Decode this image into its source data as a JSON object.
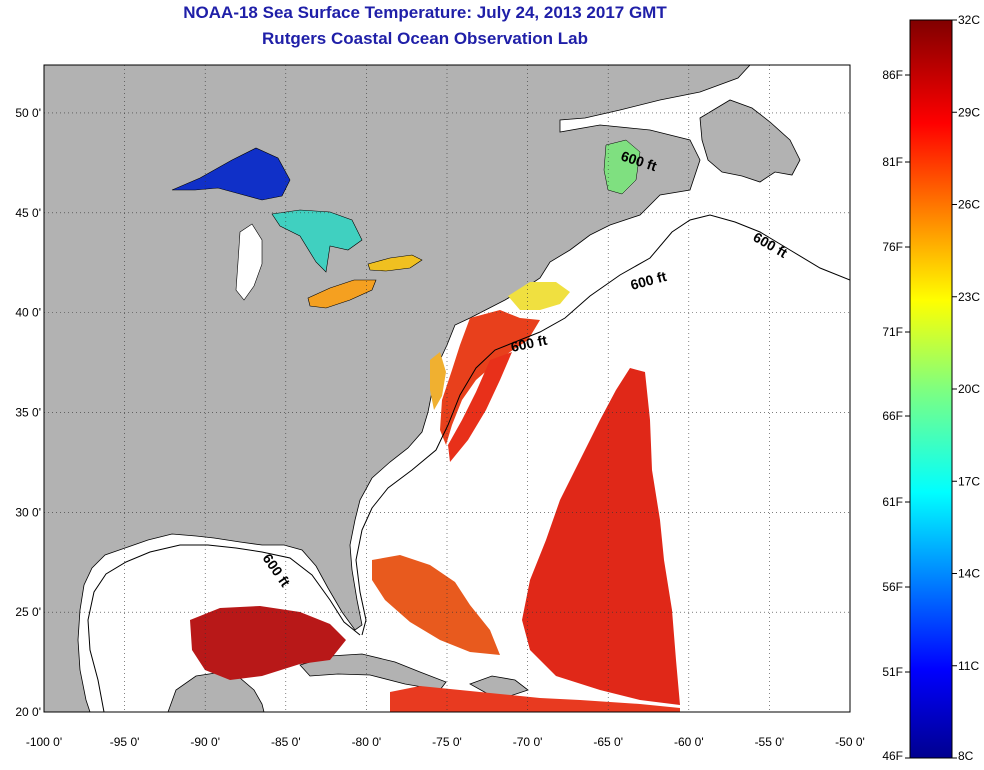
{
  "title": {
    "line1": "NOAA-18 Sea Surface Temperature:  July 24, 2013 2017 GMT",
    "line2": "Rutgers Coastal Ocean Observation Lab"
  },
  "map": {
    "lat_labels": [
      "50 0'",
      "45 0'",
      "40 0'",
      "35 0'",
      "30 0'",
      "25 0'",
      "20 0'"
    ],
    "lat_values": [
      50,
      45,
      40,
      35,
      30,
      25,
      20
    ],
    "lon_labels": [
      "-100 0'",
      "-95 0'",
      "-90 0'",
      "-85 0'",
      "-80 0'",
      "-75 0'",
      "-70 0'",
      "-65 0'",
      "-60 0'",
      "-55 0'",
      "-50 0'"
    ],
    "lon_values": [
      -100,
      -95,
      -90,
      -85,
      -80,
      -75,
      -70,
      -65,
      -60,
      -55,
      -50
    ],
    "isobath_label": "600 ft",
    "isobath_count": 6,
    "colors": {
      "land": "#b2b2b2",
      "ocean_nodata": "#ffffff",
      "grid": "#333333"
    }
  },
  "colorbar": {
    "celsius_labels": [
      "32C",
      "29C",
      "26C",
      "23C",
      "20C",
      "17C",
      "14C",
      "11C",
      "8C"
    ],
    "fahrenheit_labels": [
      "86F",
      "81F",
      "76F",
      "71F",
      "66F",
      "61F",
      "56F",
      "51F",
      "46F"
    ],
    "range_c": [
      8,
      32
    ],
    "colormap": "jet"
  }
}
